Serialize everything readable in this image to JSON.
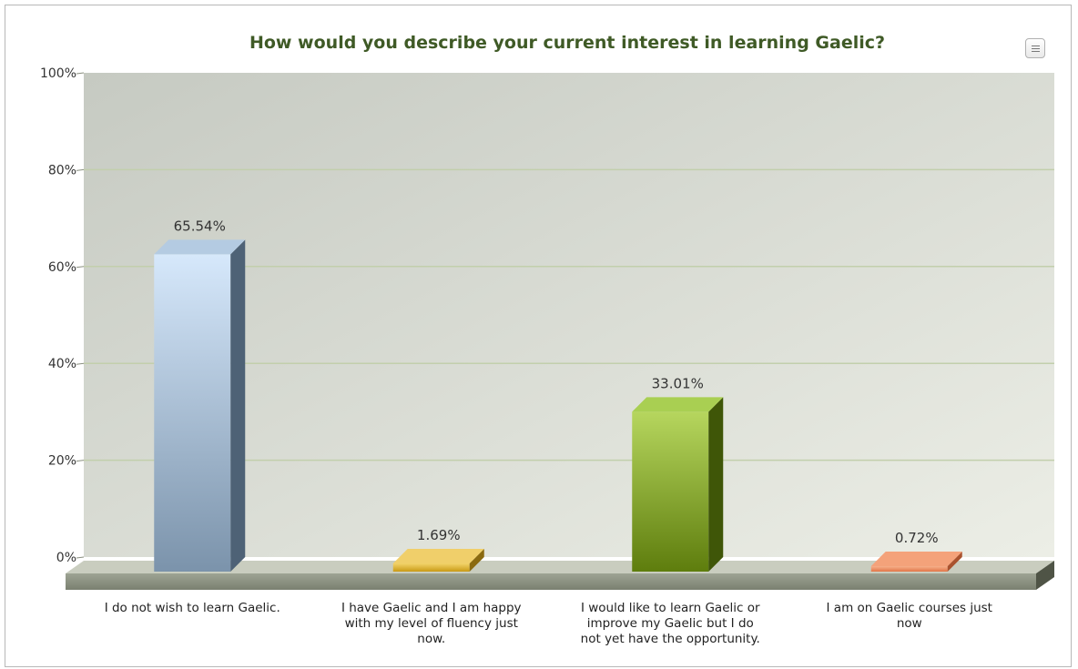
{
  "chart_data": {
    "type": "bar",
    "title": "How would you describe your current interest in learning Gaelic?",
    "categories": [
      "I do not wish to learn Gaelic.",
      "I have Gaelic and I am happy with my level of fluency just now.",
      "I would like to learn Gaelic or improve my Gaelic but I do not yet have the opportunity.",
      "I am on Gaelic courses just now"
    ],
    "category_lines": [
      [
        "I do not wish to learn Gaelic."
      ],
      [
        "I have Gaelic and I am happy",
        "with my level of fluency just",
        "now."
      ],
      [
        "I would like to learn Gaelic or",
        "improve my Gaelic but I do",
        "not yet have the opportunity."
      ],
      [
        "I am on Gaelic courses just",
        "now"
      ]
    ],
    "values": [
      65.54,
      1.69,
      33.01,
      0.72
    ],
    "data_labels": [
      "65.54%",
      "1.69%",
      "33.01%",
      "0.72%"
    ],
    "ylim": [
      0,
      100
    ],
    "yticks": [
      0,
      20,
      40,
      60,
      80,
      100
    ],
    "ytick_labels": [
      "0%",
      "20%",
      "40%",
      "60%",
      "80%",
      "100%"
    ],
    "grid": true,
    "legend": "none",
    "xlabel": "",
    "ylabel": "",
    "colors": [
      {
        "front_top": "#d6e8fb",
        "front_bottom": "#7b93ab",
        "side": "#4e6276",
        "top": "#b4cbe2"
      },
      {
        "front_top": "#f3d36a",
        "front_bottom": "#c99a16",
        "side": "#8a6a10",
        "top": "#f0cf6a"
      },
      {
        "front_top": "#b6d65e",
        "front_bottom": "#5e7d0d",
        "side": "#3f5608",
        "top": "#a9cf52"
      },
      {
        "front_top": "#f6b08a",
        "front_bottom": "#e27648",
        "side": "#a9522e",
        "top": "#f4a27a"
      }
    ]
  },
  "menu": {
    "icon": "hamburger-menu-icon"
  }
}
